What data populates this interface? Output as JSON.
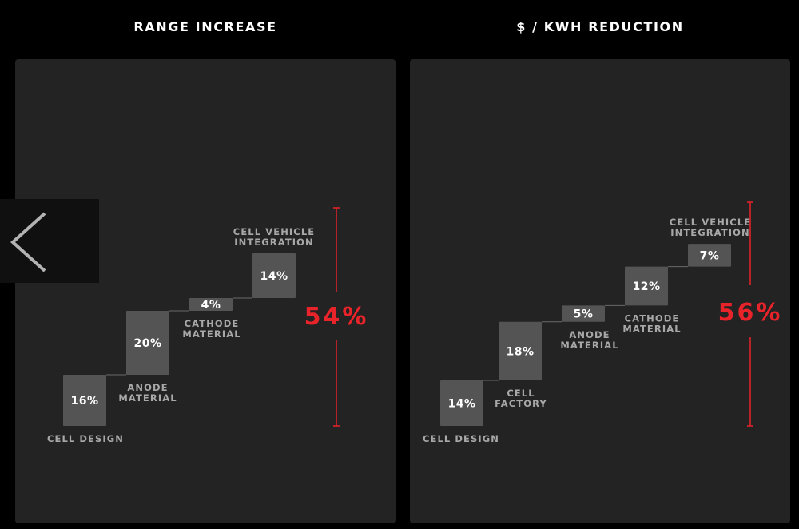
{
  "colors": {
    "background": "#000000",
    "panel": "#232323",
    "bar": "#545454",
    "bar_text": "#ffffff",
    "label": "#a8a8a8",
    "connector": "#6a6a6a",
    "accent": "#e8232a"
  },
  "nav": {
    "back_icon": "chevron-left-icon"
  },
  "chart_data": [
    {
      "type": "bar",
      "title": "RANGE INCREASE",
      "total": "54%",
      "steps": [
        {
          "label": [
            "CELL DESIGN"
          ],
          "value": 16,
          "value_label": "16%"
        },
        {
          "label": [
            "ANODE",
            "MATERIAL"
          ],
          "value": 20,
          "value_label": "20%"
        },
        {
          "label": [
            "CATHODE",
            "MATERIAL"
          ],
          "value": 4,
          "value_label": "4%"
        },
        {
          "label": [
            "CELL VEHICLE",
            "INTEGRATION"
          ],
          "value": 14,
          "value_label": "14%"
        }
      ]
    },
    {
      "type": "bar",
      "title": "$ / KWH REDUCTION",
      "total": "56%",
      "steps": [
        {
          "label": [
            "CELL DESIGN"
          ],
          "value": 14,
          "value_label": "14%"
        },
        {
          "label": [
            "CELL",
            "FACTORY"
          ],
          "value": 18,
          "value_label": "18%"
        },
        {
          "label": [
            "ANODE",
            "MATERIAL"
          ],
          "value": 5,
          "value_label": "5%"
        },
        {
          "label": [
            "CATHODE",
            "MATERIAL"
          ],
          "value": 12,
          "value_label": "12%"
        },
        {
          "label": [
            "CELL VEHICLE",
            "INTEGRATION"
          ],
          "value": 7,
          "value_label": "7%"
        }
      ]
    }
  ]
}
